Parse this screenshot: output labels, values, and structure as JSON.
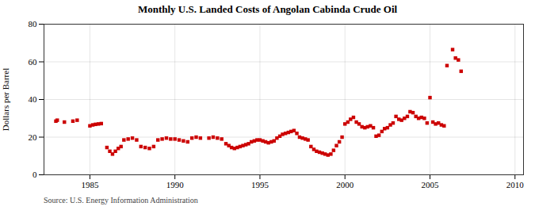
{
  "chart_data": {
    "type": "scatter",
    "title": "Monthly U.S. Landed Costs of Angolan Cabinda Crude Oil",
    "ylabel": "Dollars per Barrel",
    "annotation": "Source: U.S. Energy Information Administration",
    "color": "#cc0000",
    "marker": "square",
    "grid": true,
    "xlim": [
      1982.3,
      2010.5
    ],
    "ylim": [
      0,
      80
    ],
    "xticks": [
      1985,
      1990,
      1995,
      2000,
      2005,
      2010
    ],
    "yticks": [
      0,
      20,
      40,
      60,
      80
    ],
    "x": [
      1983.0,
      1983.08,
      1983.5,
      1984.0,
      1984.25,
      1985.0,
      1985.17,
      1985.33,
      1985.5,
      1985.67,
      1986.0,
      1986.17,
      1986.33,
      1986.5,
      1986.67,
      1986.83,
      1987.0,
      1987.25,
      1987.5,
      1987.75,
      1988.0,
      1988.25,
      1988.5,
      1988.75,
      1989.0,
      1989.25,
      1989.5,
      1989.75,
      1990.0,
      1990.25,
      1990.5,
      1990.75,
      1991.0,
      1991.25,
      1991.5,
      1992.0,
      1992.25,
      1992.5,
      1992.75,
      1993.0,
      1993.17,
      1993.33,
      1993.5,
      1993.67,
      1993.83,
      1994.0,
      1994.17,
      1994.33,
      1994.5,
      1994.67,
      1994.83,
      1995.0,
      1995.17,
      1995.33,
      1995.5,
      1995.67,
      1995.83,
      1996.0,
      1996.17,
      1996.33,
      1996.5,
      1996.67,
      1996.83,
      1997.0,
      1997.17,
      1997.33,
      1997.5,
      1997.67,
      1997.83,
      1998.0,
      1998.17,
      1998.33,
      1998.5,
      1998.67,
      1998.83,
      1999.0,
      1999.17,
      1999.33,
      1999.5,
      1999.67,
      1999.83,
      2000.0,
      2000.17,
      2000.33,
      2000.5,
      2000.67,
      2000.83,
      2001.0,
      2001.17,
      2001.33,
      2001.5,
      2001.67,
      2001.83,
      2002.0,
      2002.17,
      2002.33,
      2002.5,
      2002.67,
      2002.83,
      2003.0,
      2003.17,
      2003.33,
      2003.5,
      2003.67,
      2003.83,
      2004.0,
      2004.17,
      2004.33,
      2004.5,
      2004.67,
      2004.83,
      2005.0,
      2005.17,
      2005.33,
      2005.5,
      2005.67,
      2005.83,
      2006.0,
      2006.33,
      2006.5,
      2006.67,
      2006.83
    ],
    "values": [
      28.5,
      29.0,
      28.0,
      28.5,
      29.0,
      26.0,
      26.5,
      26.8,
      27.0,
      27.2,
      14.5,
      12.5,
      11.0,
      12.5,
      14.0,
      15.0,
      18.5,
      19.0,
      19.5,
      18.5,
      15.0,
      14.5,
      14.0,
      15.0,
      18.5,
      19.0,
      19.5,
      19.0,
      19.0,
      18.5,
      18.0,
      17.5,
      19.5,
      20.0,
      19.5,
      19.5,
      20.0,
      19.5,
      19.0,
      16.5,
      15.5,
      14.5,
      14.0,
      14.5,
      15.0,
      15.5,
      16.0,
      16.5,
      17.5,
      18.0,
      18.5,
      18.5,
      18.0,
      17.5,
      17.0,
      17.5,
      18.0,
      19.5,
      20.5,
      21.5,
      22.0,
      22.5,
      23.0,
      23.5,
      22.0,
      20.0,
      19.5,
      19.0,
      18.5,
      15.0,
      13.5,
      12.5,
      12.0,
      11.5,
      11.0,
      10.5,
      11.0,
      13.0,
      15.5,
      17.5,
      20.0,
      27.0,
      28.0,
      29.5,
      30.5,
      28.0,
      27.0,
      25.5,
      25.0,
      25.5,
      26.0,
      25.0,
      20.5,
      21.0,
      23.0,
      24.5,
      25.0,
      26.5,
      27.5,
      31.0,
      29.5,
      29.0,
      30.0,
      31.0,
      33.5,
      33.0,
      31.0,
      30.0,
      30.5,
      30.0,
      27.5,
      41.0,
      28.0,
      27.0,
      27.5,
      26.5,
      26.0,
      58.0,
      66.5,
      62.0,
      61.0,
      55.0
    ]
  }
}
